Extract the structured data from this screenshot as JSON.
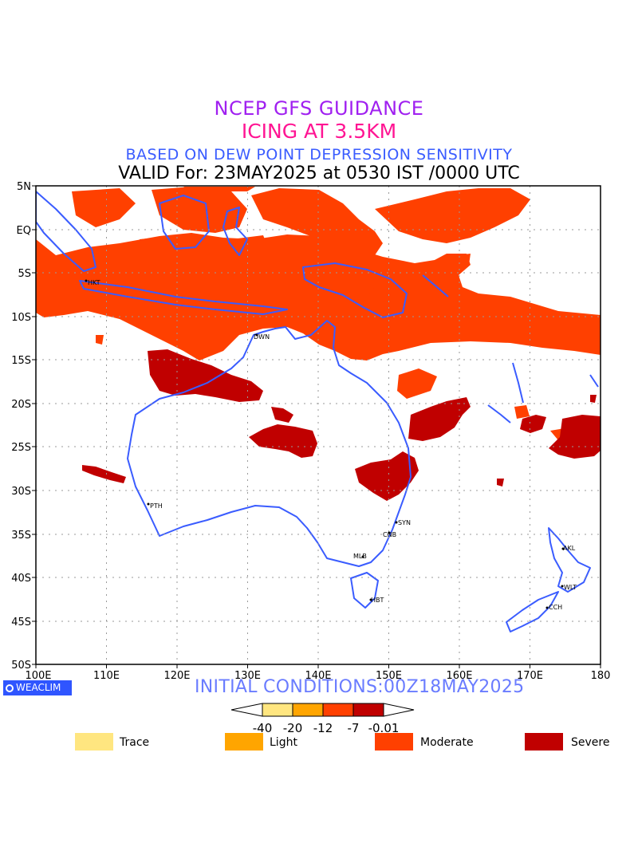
{
  "header": {
    "line1": "NCEP GFS GUIDANCE",
    "line2": "ICING AT 3.5KM",
    "line3": "BASED ON DEW POINT DEPRESSION SENSITIVITY",
    "line4": "VALID For: 23MAY2025 at 0530 IST /0000 UTC"
  },
  "map": {
    "lat_labels": [
      "5N",
      "EQ",
      "5S",
      "10S",
      "15S",
      "20S",
      "25S",
      "30S",
      "35S",
      "40S",
      "45S",
      "50S"
    ],
    "lon_labels": [
      "100E",
      "110E",
      "120E",
      "130E",
      "140E",
      "150E",
      "160E",
      "170E",
      "180"
    ],
    "cities": [
      {
        "name": "HKT"
      },
      {
        "name": "DWN"
      },
      {
        "name": "PTH"
      },
      {
        "name": "SYN"
      },
      {
        "name": "CNB"
      },
      {
        "name": "MLB"
      },
      {
        "name": "HBT"
      },
      {
        "name": "AKL"
      },
      {
        "name": "WLT"
      },
      {
        "name": "CCH"
      }
    ],
    "colors": {
      "trace": "#ffe680",
      "light": "#ffa500",
      "moderate": "#ff4000",
      "severe": "#c00000",
      "coastline": "#3a5cff"
    }
  },
  "footer": {
    "initial_conditions": "INITIAL CONDITIONS:00Z18MAY2025",
    "logo": "WEACLIM"
  },
  "colorbar": {
    "ticks": [
      "-40",
      "-20",
      "-12",
      "-7",
      "-0.01"
    ]
  },
  "legend": [
    {
      "label": "Trace",
      "color": "#ffe680"
    },
    {
      "label": "Light",
      "color": "#ffa500"
    },
    {
      "label": "Moderate",
      "color": "#ff4000"
    },
    {
      "label": "Severe",
      "color": "#c00000"
    }
  ]
}
